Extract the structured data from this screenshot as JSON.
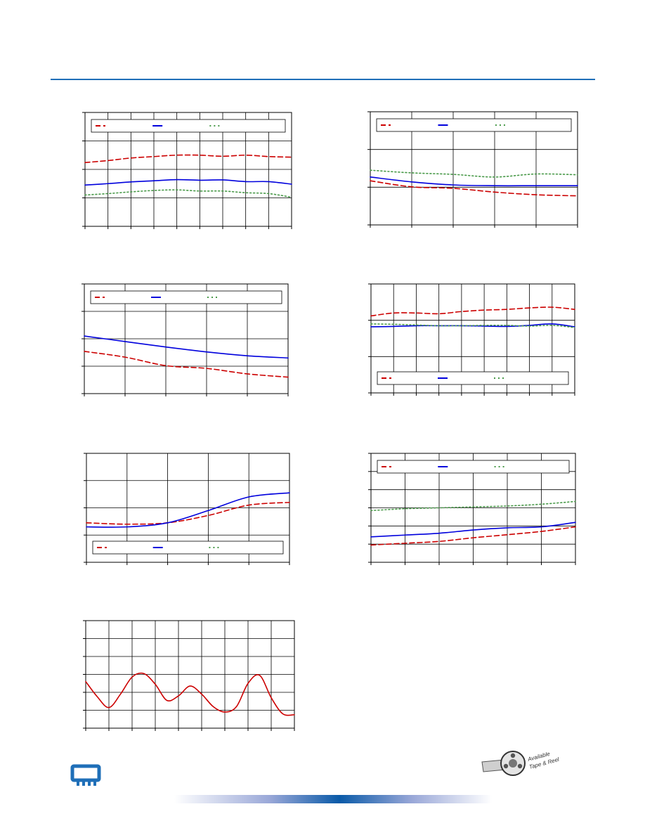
{
  "page": {
    "accent_color": "#1f6fb8",
    "footer_band_color": "#0a5aa8"
  },
  "logos": {
    "chip": "chip-package-icon",
    "badge": "film-reel-icon",
    "badge_text": [
      "Available",
      "Tape & Reel"
    ]
  },
  "chart_data": [
    {
      "type": "line",
      "grid": true,
      "legend": "top",
      "x": [
        0,
        1,
        2,
        3,
        4,
        5,
        6,
        7,
        8,
        9
      ],
      "xlim": [
        0,
        9
      ],
      "ylim": [
        0,
        4
      ],
      "series": [
        {
          "values": [
            2.24,
            2.31,
            2.4,
            2.45,
            2.5,
            2.5,
            2.46,
            2.5,
            2.45,
            2.43
          ],
          "color": "#cc0000",
          "style": "dash"
        },
        {
          "values": [
            1.45,
            1.5,
            1.56,
            1.6,
            1.64,
            1.62,
            1.63,
            1.57,
            1.57,
            1.48
          ],
          "color": "#0000dd",
          "style": "solid"
        },
        {
          "values": [
            1.1,
            1.15,
            1.21,
            1.26,
            1.28,
            1.24,
            1.24,
            1.18,
            1.15,
            1.02
          ],
          "color": "#4a9a4a",
          "style": "dot"
        }
      ]
    },
    {
      "type": "line",
      "grid": true,
      "legend": "top",
      "x": [
        0,
        1,
        2,
        3,
        4,
        5
      ],
      "xlim": [
        0,
        5
      ],
      "ylim": [
        0,
        3
      ],
      "series": [
        {
          "values": [
            1.17,
            1.01,
            0.97,
            0.87,
            0.8,
            0.77
          ],
          "color": "#cc0000",
          "style": "dash"
        },
        {
          "values": [
            1.27,
            1.14,
            1.06,
            1.04,
            1.04,
            1.04
          ],
          "color": "#0000dd",
          "style": "solid"
        },
        {
          "values": [
            1.45,
            1.38,
            1.34,
            1.27,
            1.35,
            1.33
          ],
          "color": "#4a9a4a",
          "style": "dot"
        }
      ]
    },
    {
      "type": "line",
      "grid": true,
      "legend": "top",
      "x": [
        0,
        1,
        2,
        3,
        4,
        5
      ],
      "xlim": [
        0,
        5
      ],
      "ylim": [
        0,
        4
      ],
      "series": [
        {
          "values": [
            1.54,
            1.33,
            1.02,
            0.92,
            0.72,
            0.6
          ],
          "color": "#cc0000",
          "style": "dash"
        },
        {
          "values": [
            2.1,
            1.9,
            1.7,
            1.52,
            1.38,
            1.3
          ],
          "color": "#0000dd",
          "style": "solid"
        }
      ]
    },
    {
      "type": "line",
      "grid": true,
      "legend": "bottom",
      "x": [
        0,
        1,
        2,
        3,
        4,
        5,
        6,
        7,
        8,
        9
      ],
      "xlim": [
        0,
        9
      ],
      "ylim": [
        0,
        3
      ],
      "series": [
        {
          "values": [
            2.12,
            2.2,
            2.2,
            2.18,
            2.24,
            2.28,
            2.3,
            2.34,
            2.36,
            2.3
          ],
          "color": "#cc0000",
          "style": "dash"
        },
        {
          "values": [
            1.82,
            1.83,
            1.85,
            1.85,
            1.85,
            1.84,
            1.83,
            1.86,
            1.9,
            1.82
          ],
          "color": "#0000dd",
          "style": "solid"
        },
        {
          "values": [
            1.9,
            1.89,
            1.87,
            1.85,
            1.85,
            1.86,
            1.86,
            1.84,
            1.86,
            1.8
          ],
          "color": "#4a9a4a",
          "style": "dot"
        }
      ]
    },
    {
      "type": "line",
      "grid": true,
      "legend": "bottom",
      "x": [
        0,
        1,
        2,
        3,
        4,
        5
      ],
      "xlim": [
        0,
        5
      ],
      "ylim": [
        0,
        4
      ],
      "series": [
        {
          "values": [
            1.45,
            1.4,
            1.45,
            1.72,
            2.1,
            2.2
          ],
          "color": "#cc0000",
          "style": "dash"
        },
        {
          "values": [
            1.3,
            1.3,
            1.45,
            1.9,
            2.4,
            2.55
          ],
          "color": "#0000dd",
          "style": "solid"
        }
      ]
    },
    {
      "type": "line",
      "grid": true,
      "legend": "top",
      "x": [
        0,
        1,
        2,
        3,
        4,
        5,
        6
      ],
      "xlim": [
        0,
        6
      ],
      "ylim": [
        0,
        6
      ],
      "series": [
        {
          "values": [
            0.95,
            1.05,
            1.15,
            1.35,
            1.52,
            1.7,
            1.95
          ],
          "color": "#cc0000",
          "style": "dash"
        },
        {
          "values": [
            1.4,
            1.5,
            1.6,
            1.78,
            1.9,
            1.95,
            2.2
          ],
          "color": "#0000dd",
          "style": "solid"
        },
        {
          "values": [
            2.85,
            2.95,
            3.0,
            3.05,
            3.1,
            3.2,
            3.35
          ],
          "color": "#4a9a4a",
          "style": "dot"
        }
      ]
    },
    {
      "type": "line",
      "grid": true,
      "legend": "none",
      "x": [
        0,
        0.5,
        1,
        1.5,
        2,
        2.5,
        3,
        3.5,
        4,
        4.5,
        5,
        5.5,
        6,
        6.5,
        7,
        7.5,
        8,
        8.5,
        9
      ],
      "xlim": [
        0,
        9
      ],
      "ylim": [
        0,
        6
      ],
      "series": [
        {
          "values": [
            2.6,
            1.75,
            1.15,
            1.9,
            2.85,
            3.05,
            2.45,
            1.55,
            1.8,
            2.35,
            1.9,
            1.2,
            0.9,
            1.2,
            2.5,
            2.95,
            1.7,
            0.8,
            0.75
          ],
          "color": "#cc0000",
          "style": "solid"
        }
      ]
    }
  ]
}
